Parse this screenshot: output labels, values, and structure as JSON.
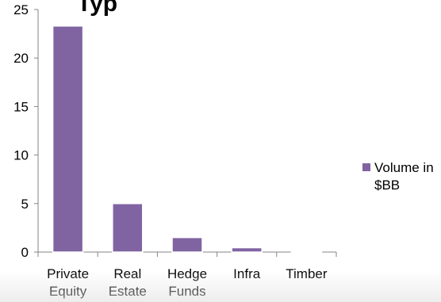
{
  "chart_data": {
    "type": "bar",
    "title_fragment": "Typ",
    "categories": [
      [
        "Private",
        "Equity"
      ],
      [
        "Real",
        "Estate"
      ],
      [
        "Hedge",
        "Funds"
      ],
      [
        "Infra"
      ],
      [
        "Timber"
      ]
    ],
    "series": [
      {
        "name": "Volume in $BB",
        "values": [
          23.3,
          5.0,
          1.5,
          0.45,
          0.05
        ]
      }
    ],
    "legend_lines": [
      "Volume in",
      "$BB"
    ],
    "ylim": [
      0,
      25
    ],
    "yticks": [
      0,
      5,
      10,
      15,
      20,
      25
    ],
    "grid": false,
    "legend_position": "right",
    "colors": {
      "bar_fill": "#8064A2",
      "bar_edge": "#ffffff",
      "axis": "#868686"
    }
  }
}
